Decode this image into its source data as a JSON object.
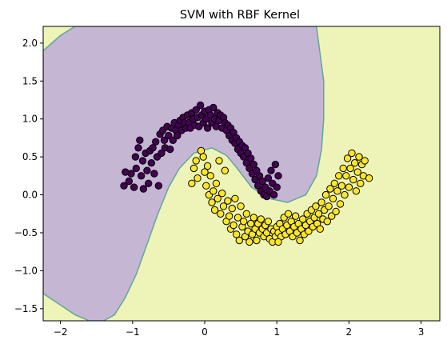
{
  "chart_data": {
    "type": "scatter",
    "title": "SVM with RBF Kernel",
    "xlabel": "",
    "ylabel": "",
    "xlim": [
      -2.24,
      3.26
    ],
    "ylim": [
      -1.66,
      2.22
    ],
    "xticks": [
      -2,
      -1,
      0,
      1,
      2,
      3
    ],
    "yticks": [
      -1.5,
      -1.0,
      -0.5,
      0.0,
      0.5,
      1.0,
      1.5,
      2.0
    ],
    "xtick_labels": [
      "−2",
      "−1",
      "0",
      "1",
      "2",
      "3"
    ],
    "ytick_labels": [
      "−1.5",
      "−1.0",
      "−0.5",
      "0.0",
      "0.5",
      "1.0",
      "1.5",
      "2.0"
    ],
    "grid": false,
    "legend": "none",
    "decision_regions": {
      "class_0_color": "#c5b6d4",
      "class_1_color": "#eef3b7",
      "boundary_color": "#5fa89a",
      "class_0_region_outline": [
        [
          -2.24,
          1.9
        ],
        [
          -2.0,
          2.1
        ],
        [
          -1.8,
          2.22
        ],
        [
          1.55,
          2.22
        ],
        [
          1.58,
          2.0
        ],
        [
          1.65,
          1.5
        ],
        [
          1.65,
          1.0
        ],
        [
          1.62,
          0.6
        ],
        [
          1.55,
          0.25
        ],
        [
          1.4,
          0.0
        ],
        [
          1.15,
          -0.1
        ],
        [
          0.9,
          -0.05
        ],
        [
          0.65,
          0.1
        ],
        [
          0.45,
          0.35
        ],
        [
          0.3,
          0.52
        ],
        [
          0.1,
          0.62
        ],
        [
          -0.15,
          0.55
        ],
        [
          -0.35,
          0.35
        ],
        [
          -0.5,
          0.1
        ],
        [
          -0.65,
          -0.25
        ],
        [
          -0.8,
          -0.65
        ],
        [
          -0.95,
          -1.05
        ],
        [
          -1.1,
          -1.35
        ],
        [
          -1.25,
          -1.58
        ],
        [
          -1.4,
          -1.66
        ],
        [
          -1.6,
          -1.66
        ],
        [
          -1.8,
          -1.58
        ],
        [
          -2.24,
          -1.3
        ]
      ]
    },
    "series": [
      {
        "class": 0,
        "color": "#440154",
        "points": [
          [
            -1.12,
            0.12
          ],
          [
            -1.05,
            0.18
          ],
          [
            -1.02,
            0.28
          ],
          [
            -0.98,
            0.1
          ],
          [
            -0.95,
            0.35
          ],
          [
            -0.92,
            0.62
          ],
          [
            -0.9,
            0.72
          ],
          [
            -0.88,
            0.25
          ],
          [
            -0.86,
            0.45
          ],
          [
            -0.85,
            0.08
          ],
          [
            -0.82,
            0.55
          ],
          [
            -0.8,
            0.32
          ],
          [
            -0.78,
            0.15
          ],
          [
            -0.76,
            0.58
          ],
          [
            -0.74,
            0.42
          ],
          [
            -0.72,
            0.62
          ],
          [
            -0.7,
            0.28
          ],
          [
            -0.68,
            0.7
          ],
          [
            -0.66,
            0.5
          ],
          [
            -0.64,
            0.12
          ],
          [
            -0.62,
            0.8
          ],
          [
            -0.6,
            0.55
          ],
          [
            -0.58,
            0.85
          ],
          [
            -0.56,
            0.72
          ],
          [
            -0.55,
            0.62
          ],
          [
            -0.52,
            0.9
          ],
          [
            -0.5,
            0.78
          ],
          [
            -0.48,
            0.6
          ],
          [
            -0.46,
            0.88
          ],
          [
            -0.44,
            0.72
          ],
          [
            -0.42,
            0.95
          ],
          [
            -0.4,
            0.85
          ],
          [
            -0.38,
            0.78
          ],
          [
            -0.36,
            0.92
          ],
          [
            -0.34,
            0.98
          ],
          [
            -0.32,
            0.85
          ],
          [
            -0.3,
            1.02
          ],
          [
            -0.28,
            0.95
          ],
          [
            -0.26,
            0.88
          ],
          [
            -0.24,
            1.05
          ],
          [
            -0.22,
            0.95
          ],
          [
            -0.2,
            0.88
          ],
          [
            -0.18,
            1.08
          ],
          [
            -0.16,
            1.0
          ],
          [
            -0.14,
            0.92
          ],
          [
            -0.12,
            1.12
          ],
          [
            -0.1,
            1.02
          ],
          [
            -0.08,
            0.9
          ],
          [
            -0.06,
            1.18
          ],
          [
            -0.04,
            1.05
          ],
          [
            -0.02,
            0.95
          ],
          [
            0.0,
            1.1
          ],
          [
            0.02,
            1.0
          ],
          [
            0.04,
            0.88
          ],
          [
            0.06,
            1.12
          ],
          [
            0.08,
            1.05
          ],
          [
            0.1,
            0.95
          ],
          [
            0.12,
            1.15
          ],
          [
            0.14,
            1.0
          ],
          [
            0.16,
            0.9
          ],
          [
            0.18,
            1.08
          ],
          [
            0.2,
            0.98
          ],
          [
            0.22,
            1.05
          ],
          [
            0.24,
            0.88
          ],
          [
            0.26,
            1.02
          ],
          [
            0.28,
            0.95
          ],
          [
            0.3,
            0.85
          ],
          [
            0.32,
            0.92
          ],
          [
            0.34,
            0.78
          ],
          [
            0.36,
            0.88
          ],
          [
            0.38,
            0.72
          ],
          [
            0.4,
            0.82
          ],
          [
            0.42,
            0.68
          ],
          [
            0.44,
            0.75
          ],
          [
            0.46,
            0.6
          ],
          [
            0.48,
            0.7
          ],
          [
            0.5,
            0.55
          ],
          [
            0.52,
            0.65
          ],
          [
            0.54,
            0.5
          ],
          [
            0.56,
            0.62
          ],
          [
            0.58,
            0.42
          ],
          [
            0.6,
            0.55
          ],
          [
            0.62,
            0.35
          ],
          [
            0.64,
            0.48
          ],
          [
            0.66,
            0.28
          ],
          [
            0.68,
            0.4
          ],
          [
            0.7,
            0.2
          ],
          [
            0.72,
            0.32
          ],
          [
            0.74,
            0.12
          ],
          [
            0.76,
            0.25
          ],
          [
            0.78,
            0.05
          ],
          [
            0.8,
            0.18
          ],
          [
            0.82,
            0.0
          ],
          [
            0.84,
            0.1
          ],
          [
            0.86,
            -0.02
          ],
          [
            0.88,
            0.22
          ],
          [
            0.9,
            0.05
          ],
          [
            0.92,
            0.32
          ],
          [
            0.94,
            0.15
          ],
          [
            0.96,
            0.0
          ],
          [
            0.98,
            0.4
          ],
          [
            1.0,
            0.1
          ],
          [
            1.02,
            0.25
          ],
          [
            -1.1,
            0.3
          ],
          [
            -0.96,
            0.5
          ]
        ]
      },
      {
        "class": 1,
        "color": "#fde725",
        "points": [
          [
            -0.18,
            0.15
          ],
          [
            -0.15,
            0.35
          ],
          [
            -0.12,
            0.45
          ],
          [
            -0.1,
            0.22
          ],
          [
            -0.05,
            0.58
          ],
          [
            -0.02,
            0.5
          ],
          [
            0.0,
            0.3
          ],
          [
            0.02,
            0.12
          ],
          [
            0.04,
            0.38
          ],
          [
            0.06,
            0.0
          ],
          [
            0.08,
            0.25
          ],
          [
            0.1,
            -0.1
          ],
          [
            0.12,
            0.05
          ],
          [
            0.14,
            -0.2
          ],
          [
            0.16,
            0.15
          ],
          [
            0.18,
            -0.05
          ],
          [
            0.2,
            0.45
          ],
          [
            0.22,
            -0.25
          ],
          [
            0.24,
            0.02
          ],
          [
            0.26,
            -0.15
          ],
          [
            0.28,
            0.32
          ],
          [
            0.3,
            -0.35
          ],
          [
            0.32,
            -0.08
          ],
          [
            0.34,
            -0.28
          ],
          [
            0.36,
            -0.45
          ],
          [
            0.38,
            -0.18
          ],
          [
            0.4,
            -0.4
          ],
          [
            0.42,
            -0.05
          ],
          [
            0.44,
            -0.52
          ],
          [
            0.46,
            -0.3
          ],
          [
            0.48,
            -0.6
          ],
          [
            0.5,
            -0.15
          ],
          [
            0.52,
            -0.42
          ],
          [
            0.54,
            -0.35
          ],
          [
            0.56,
            -0.55
          ],
          [
            0.58,
            -0.25
          ],
          [
            0.6,
            -0.48
          ],
          [
            0.62,
            -0.62
          ],
          [
            0.64,
            -0.38
          ],
          [
            0.66,
            -0.52
          ],
          [
            0.68,
            -0.3
          ],
          [
            0.7,
            -0.45
          ],
          [
            0.72,
            -0.6
          ],
          [
            0.74,
            -0.38
          ],
          [
            0.76,
            -0.5
          ],
          [
            0.78,
            -0.32
          ],
          [
            0.8,
            -0.45
          ],
          [
            0.82,
            -0.55
          ],
          [
            0.84,
            -0.4
          ],
          [
            0.86,
            -0.5
          ],
          [
            0.88,
            -0.35
          ],
          [
            0.9,
            -0.58
          ],
          [
            0.92,
            -0.45
          ],
          [
            0.94,
            -0.62
          ],
          [
            0.96,
            -0.48
          ],
          [
            0.98,
            -0.55
          ],
          [
            1.0,
            -0.42
          ],
          [
            1.02,
            -0.5
          ],
          [
            1.04,
            -0.38
          ],
          [
            1.06,
            -0.55
          ],
          [
            1.08,
            -0.45
          ],
          [
            1.1,
            -0.3
          ],
          [
            1.12,
            -0.52
          ],
          [
            1.14,
            -0.4
          ],
          [
            1.16,
            -0.25
          ],
          [
            1.18,
            -0.48
          ],
          [
            1.2,
            -0.35
          ],
          [
            1.22,
            -0.55
          ],
          [
            1.24,
            -0.42
          ],
          [
            1.26,
            -0.28
          ],
          [
            1.28,
            -0.5
          ],
          [
            1.3,
            -0.38
          ],
          [
            1.32,
            -0.6
          ],
          [
            1.34,
            -0.45
          ],
          [
            1.36,
            -0.32
          ],
          [
            1.38,
            -0.52
          ],
          [
            1.4,
            -0.4
          ],
          [
            1.42,
            -0.25
          ],
          [
            1.44,
            -0.48
          ],
          [
            1.46,
            -0.35
          ],
          [
            1.48,
            -0.2
          ],
          [
            1.5,
            -0.42
          ],
          [
            1.52,
            -0.3
          ],
          [
            1.54,
            -0.15
          ],
          [
            1.56,
            -0.38
          ],
          [
            1.58,
            -0.25
          ],
          [
            1.6,
            -0.45
          ],
          [
            1.62,
            -0.1
          ],
          [
            1.64,
            -0.32
          ],
          [
            1.66,
            -0.2
          ],
          [
            1.68,
            0.0
          ],
          [
            1.7,
            -0.35
          ],
          [
            1.72,
            -0.15
          ],
          [
            1.74,
            0.08
          ],
          [
            1.76,
            -0.28
          ],
          [
            1.78,
            -0.05
          ],
          [
            1.8,
            0.15
          ],
          [
            1.82,
            -0.22
          ],
          [
            1.84,
            0.05
          ],
          [
            1.86,
            0.25
          ],
          [
            1.88,
            -0.12
          ],
          [
            1.9,
            0.12
          ],
          [
            1.92,
            0.35
          ],
          [
            1.94,
            0.0
          ],
          [
            1.96,
            0.25
          ],
          [
            1.98,
            0.48
          ],
          [
            2.0,
            0.1
          ],
          [
            2.02,
            0.35
          ],
          [
            2.04,
            0.55
          ],
          [
            2.06,
            0.2
          ],
          [
            2.08,
            0.42
          ],
          [
            2.1,
            0.05
          ],
          [
            2.12,
            0.3
          ],
          [
            2.14,
            0.5
          ],
          [
            2.16,
            0.15
          ],
          [
            2.18,
            0.4
          ],
          [
            2.2,
            0.25
          ],
          [
            2.22,
            0.45
          ],
          [
            2.28,
            0.22
          ],
          [
            1.02,
            -0.62
          ]
        ]
      }
    ]
  }
}
